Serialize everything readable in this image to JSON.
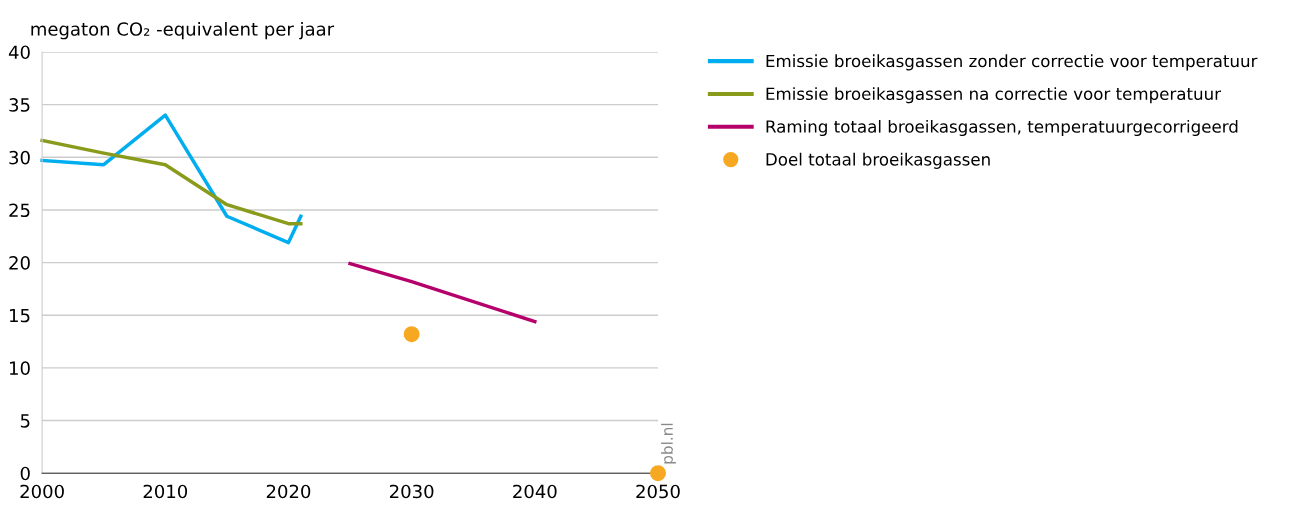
{
  "chart_data": {
    "type": "line",
    "ylabel": "megaton CO₂ -equivalent per jaar",
    "xlim": [
      2000,
      2050
    ],
    "xticks": [
      2000,
      2010,
      2020,
      2030,
      2040,
      2050
    ],
    "ylim": [
      0,
      40
    ],
    "yticks": [
      0,
      5,
      10,
      15,
      20,
      25,
      30,
      35,
      40
    ],
    "grid": "y",
    "legend": "right",
    "annotations": [
      "pbl.nl"
    ],
    "series": [
      {
        "name": "Emissie broeikasgassen zonder correctie voor temperatuur",
        "color": "#00aeef",
        "x": [
          2000,
          2005,
          2010,
          2015,
          2020,
          2021
        ],
        "values": [
          29.7,
          29.3,
          34.0,
          24.4,
          21.9,
          24.4
        ]
      },
      {
        "name": "Emissie broeikasgassen na correctie voor temperatuur",
        "color": "#8a9a1b",
        "x": [
          2000,
          2005,
          2010,
          2015,
          2020,
          2021
        ],
        "values": [
          31.6,
          30.4,
          29.3,
          25.5,
          23.7,
          23.7
        ]
      },
      {
        "name": "Raming totaal broeikasgassen, temperatuurgecorrigeerd",
        "color": "#b5006b",
        "x": [
          2025,
          2030,
          2040
        ],
        "values": [
          19.9,
          18.2,
          14.4
        ]
      },
      {
        "name": "Doel totaal broeikasgassen",
        "color": "#f7a823",
        "type": "scatter",
        "marker": "circle",
        "x": [
          2030,
          2050
        ],
        "values": [
          13.2,
          0
        ]
      }
    ]
  }
}
